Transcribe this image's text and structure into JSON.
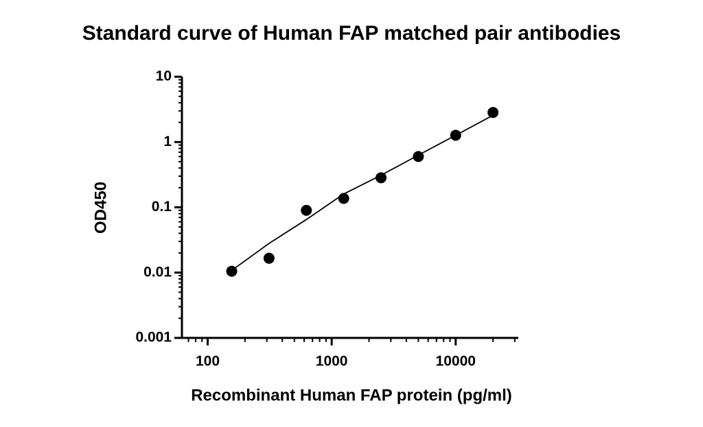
{
  "chart_data": {
    "type": "scatter",
    "title": "Standard curve of Human FAP matched pair antibodies",
    "xlabel": "Recombinant Human FAP protein (pg/ml)",
    "ylabel": "OD450",
    "x": [
      156.25,
      312.5,
      625,
      1250,
      2500,
      5000,
      10000,
      20000
    ],
    "series": [
      {
        "color": "#000000",
        "values": [
          0.0105,
          0.0166,
          0.09,
          0.137,
          0.284,
          0.6,
          1.27,
          2.84
        ]
      }
    ],
    "fit": {
      "color": "#000000",
      "x": [
        156.25,
        312.5,
        625,
        1250,
        2500,
        5000,
        10000,
        20000
      ],
      "values": [
        0.0108,
        0.028,
        0.065,
        0.16,
        0.31,
        0.63,
        1.27,
        2.57
      ]
    },
    "xscale": "log",
    "yscale": "log",
    "xlim": [
      62,
      32000
    ],
    "ylim": [
      0.001,
      10
    ],
    "xticks": [
      100,
      1000,
      10000
    ],
    "yticks": [
      0.001,
      0.01,
      0.1,
      1,
      10
    ]
  }
}
